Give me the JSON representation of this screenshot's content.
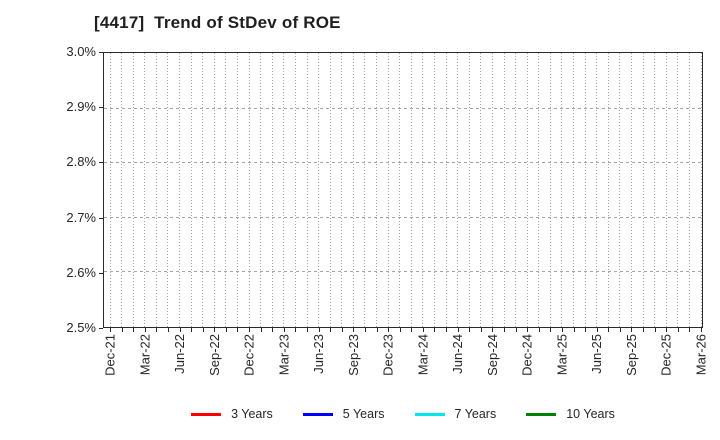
{
  "figure": {
    "background": "#ffffff"
  },
  "chart_data": {
    "type": "line",
    "title": "[4417]  Trend of StDev of ROE",
    "xlabel": "",
    "ylabel": "",
    "x_tick_labels": [
      "Dec-21",
      "Mar-22",
      "Jun-22",
      "Sep-22",
      "Dec-22",
      "Mar-23",
      "Jun-23",
      "Sep-23",
      "Dec-23",
      "Mar-24",
      "Jun-24",
      "Sep-24",
      "Dec-24",
      "Mar-25",
      "Jun-25",
      "Sep-25",
      "Dec-25",
      "Mar-26"
    ],
    "months_between_labeled_ticks": 3,
    "total_month_span": 51,
    "y_tick_labels": [
      "3.0%",
      "2.9%",
      "2.8%",
      "2.7%",
      "2.6%",
      "2.5%"
    ],
    "ylim": [
      2.5,
      3.0
    ],
    "y_unit": "%",
    "grid": true,
    "gridline_style": {
      "vertical": "dotted",
      "horizontal": "dashed"
    },
    "legend_position": "bottom-center",
    "plot_empty": true,
    "series": [
      {
        "name": "3 Years",
        "color": "#ff0000",
        "values": []
      },
      {
        "name": "5 Years",
        "color": "#0000ff",
        "values": []
      },
      {
        "name": "7 Years",
        "color": "#00e5ee",
        "values": []
      },
      {
        "name": "10 Years",
        "color": "#008000",
        "values": []
      }
    ]
  },
  "colors": {
    "axis_spine": "#2b2b2b",
    "grid": "#a3a3a3",
    "title_text": "#1f1f1f",
    "tick_text": "#262626",
    "background": "#ffffff"
  }
}
